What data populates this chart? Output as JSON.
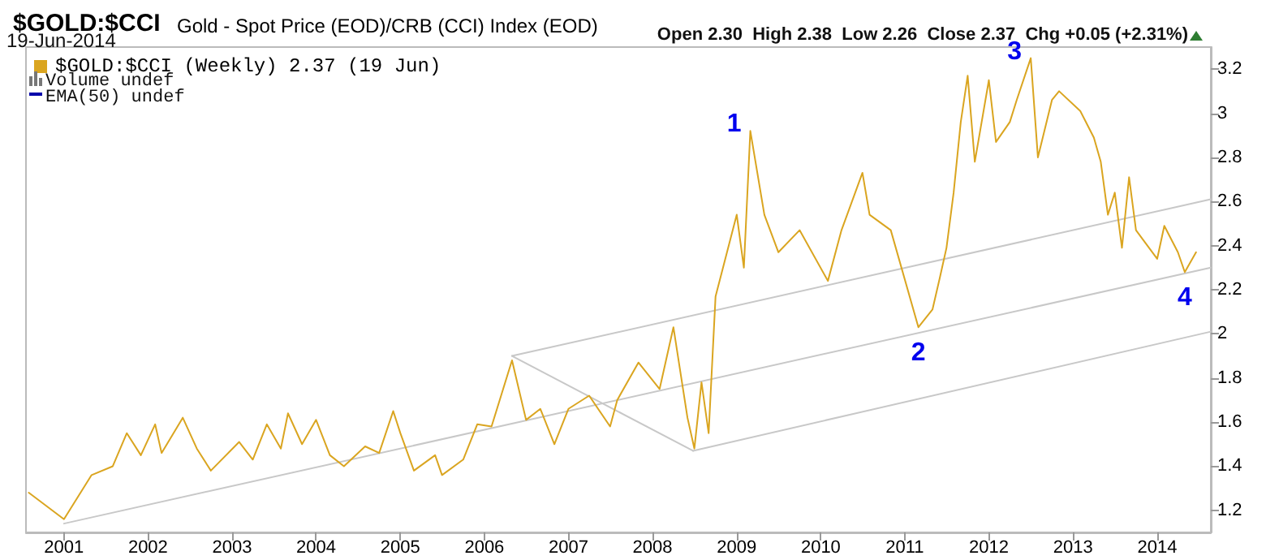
{
  "chart_data": {
    "type": "line",
    "title": "$GOLD:$CCI",
    "subtitle": "Gold - Spot Price (EOD)/CRB (CCI) Index (EOD)",
    "annotations": [
      "19-Jun-2014",
      "Open 2.30  High 2.38  Low 2.26  Close 2.37  Chg +0.05 (+2.31%)",
      "Volume undef",
      "EMA(50) undef",
      {
        "text": "1",
        "x": "2009-03",
        "y": 2.92
      },
      {
        "text": "2",
        "x": "2011-03",
        "y": 2.03
      },
      {
        "text": "3",
        "x": "2012-07",
        "y": 3.25
      },
      {
        "text": "4",
        "x": "2014-05",
        "y": 2.28
      }
    ],
    "x": [
      "2000-08",
      "2001-01",
      "2001-05",
      "2001-08",
      "2001-10",
      "2001-12",
      "2002-02",
      "2002-03",
      "2002-06",
      "2002-08",
      "2002-10",
      "2003-02",
      "2003-04",
      "2003-06",
      "2003-08",
      "2003-09",
      "2003-11",
      "2004-01",
      "2004-03",
      "2004-05",
      "2004-08",
      "2004-10",
      "2004-12",
      "2005-01",
      "2005-03",
      "2005-06",
      "2005-07",
      "2005-10",
      "2005-12",
      "2006-02",
      "2006-05",
      "2006-07",
      "2006-09",
      "2006-11",
      "2007-01",
      "2007-04",
      "2007-07",
      "2007-08",
      "2007-11",
      "2008-02",
      "2008-04",
      "2008-06",
      "2008-07",
      "2008-08",
      "2008-09",
      "2008-10",
      "2009-01",
      "2009-02",
      "2009-03",
      "2009-05",
      "2009-07",
      "2009-10",
      "2010-02",
      "2010-04",
      "2010-07",
      "2010-08",
      "2010-11",
      "2011-03",
      "2011-05",
      "2011-06",
      "2011-07",
      "2011-08",
      "2011-09",
      "2011-10",
      "2011-11",
      "2012-01",
      "2012-02",
      "2012-04",
      "2012-05",
      "2012-07",
      "2012-08",
      "2012-10",
      "2012-11",
      "2013-02",
      "2013-04",
      "2013-05",
      "2013-06",
      "2013-07",
      "2013-08",
      "2013-09",
      "2013-10",
      "2014-01",
      "2014-02",
      "2014-04",
      "2014-05",
      "2014-06-19"
    ],
    "series": [
      {
        "name": "$GOLD:$CCI (Weekly) 2.37 (19 Jun)",
        "color": "#daa520",
        "values": [
          1.28,
          1.16,
          1.36,
          1.4,
          1.55,
          1.45,
          1.59,
          1.46,
          1.62,
          1.48,
          1.38,
          1.51,
          1.43,
          1.59,
          1.48,
          1.64,
          1.5,
          1.61,
          1.45,
          1.4,
          1.49,
          1.46,
          1.65,
          1.55,
          1.38,
          1.45,
          1.36,
          1.43,
          1.59,
          1.58,
          1.88,
          1.61,
          1.66,
          1.5,
          1.66,
          1.72,
          1.58,
          1.7,
          1.87,
          1.75,
          2.03,
          1.62,
          1.48,
          1.78,
          1.55,
          2.17,
          2.54,
          2.3,
          2.92,
          2.54,
          2.37,
          2.47,
          2.24,
          2.47,
          2.73,
          2.54,
          2.47,
          2.03,
          2.11,
          2.25,
          2.39,
          2.64,
          2.96,
          3.17,
          2.78,
          3.15,
          2.87,
          2.96,
          3.06,
          3.25,
          2.8,
          3.06,
          3.1,
          3.01,
          2.89,
          2.78,
          2.54,
          2.64,
          2.39,
          2.71,
          2.47,
          2.34,
          2.49,
          2.37,
          2.28,
          2.37
        ]
      },
      {
        "type": "line",
        "color": "#c8c8c8",
        "x": [
          "2001-01",
          "2014-08-22"
        ],
        "values": [
          1.14,
          2.3
        ]
      },
      {
        "type": "line",
        "color": "#c8c8c8",
        "x": [
          "2006-05",
          "2014-08-22"
        ],
        "values": [
          1.9,
          2.61
        ]
      },
      {
        "type": "line",
        "color": "#c8c8c8",
        "x": [
          "2006-05",
          "2008-06-25"
        ],
        "values": [
          1.9,
          1.47
        ]
      },
      {
        "type": "line",
        "color": "#c8c8c8",
        "x": [
          "2008-06-25",
          "2014-08-22"
        ],
        "values": [
          1.47,
          2.01
        ]
      }
    ],
    "xlim": [
      "2000-07-20",
      "2014-08-22"
    ],
    "xticks": [
      "2001",
      "2002",
      "2003",
      "2004",
      "2005",
      "2006",
      "2007",
      "2008",
      "2009",
      "2010",
      "2011",
      "2012",
      "2013",
      "2014"
    ],
    "ylim": [
      1.1,
      3.3
    ],
    "yticks": [
      1.2,
      1.4,
      1.6,
      1.8,
      2.0,
      2.2,
      2.4,
      2.6,
      2.8,
      3.0,
      3.2
    ],
    "legend": "top left",
    "marker": "none",
    "line_style": "solid"
  }
}
